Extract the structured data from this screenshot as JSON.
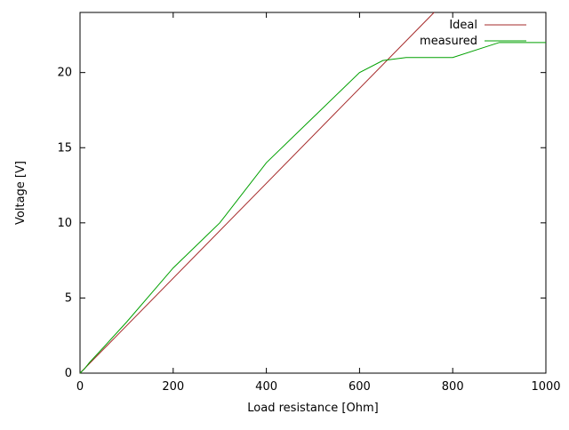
{
  "page": {
    "background": "#ffffff",
    "axis_color": "#000000"
  },
  "chart_data": {
    "type": "line",
    "title": "",
    "xlabel": "Load resistance [Ohm]",
    "ylabel": "Voltage [V]",
    "xlim": [
      0,
      1000
    ],
    "ylim": [
      0,
      24
    ],
    "xticks": [
      0,
      200,
      400,
      600,
      800,
      1000
    ],
    "yticks": [
      0,
      5,
      10,
      15,
      20
    ],
    "grid": false,
    "legend_position": "top-right-inside",
    "series": [
      {
        "name": "Ideal",
        "color": "#a52828",
        "x": [
          0,
          760
        ],
        "y": [
          0,
          24
        ]
      },
      {
        "name": "measured",
        "color": "#00a000",
        "x": [
          0,
          10,
          20,
          50,
          100,
          150,
          200,
          300,
          400,
          500,
          600,
          650,
          700,
          800,
          900,
          1000
        ],
        "y": [
          0,
          0.3,
          0.7,
          1.7,
          3.4,
          5.2,
          7,
          10,
          14,
          17,
          20,
          20.8,
          21,
          21,
          22,
          22
        ]
      }
    ]
  }
}
